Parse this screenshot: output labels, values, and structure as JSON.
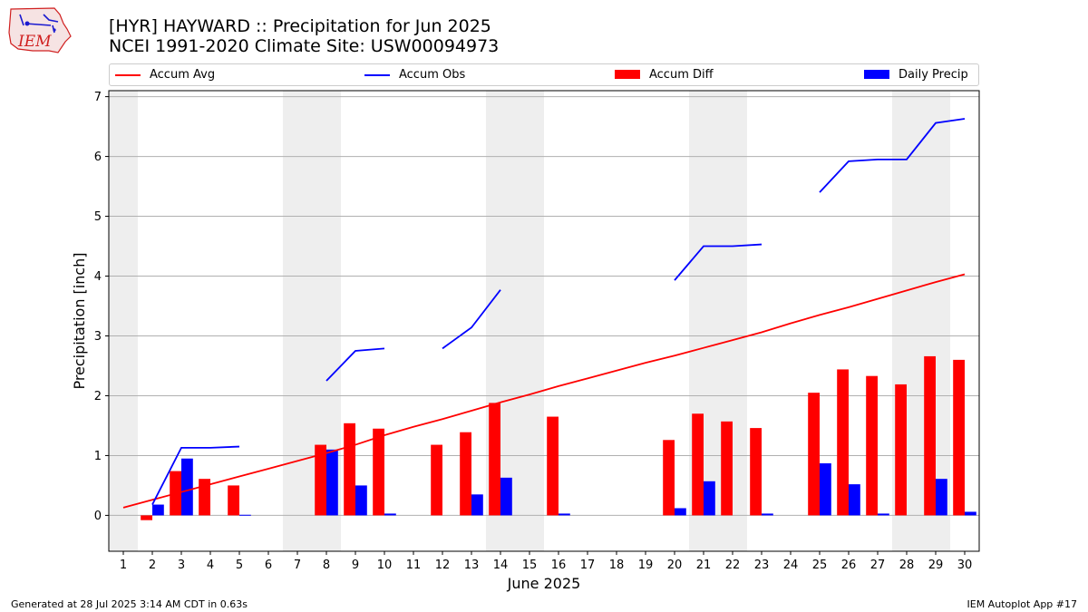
{
  "header": {
    "title_line1": "[HYR] HAYWARD :: Precipitation for Jun 2025",
    "title_line2": "NCEI 1991-2020 Climate Site: USW00094973",
    "logo_text": "IEM"
  },
  "legend": {
    "items": [
      {
        "label": "Accum Avg",
        "kind": "line",
        "color": "#ff0000"
      },
      {
        "label": "Accum Obs",
        "kind": "line",
        "color": "#0000ff"
      },
      {
        "label": "Accum Diff",
        "kind": "box",
        "color": "#ff0000"
      },
      {
        "label": "Daily Precip",
        "kind": "box",
        "color": "#0000ff"
      }
    ]
  },
  "footer": {
    "left": "Generated at 28 Jul 2025 3:14 AM CDT in 0.63s",
    "right": "IEM Autoplot App #17"
  },
  "chart_data": {
    "type": "bar",
    "xlabel": "June 2025",
    "ylabel": "Precipitation [inch]",
    "ylim": [
      -0.6,
      7.1
    ],
    "yticks": [
      0,
      1,
      2,
      3,
      4,
      5,
      6,
      7
    ],
    "xlim": [
      0.5,
      30.5
    ],
    "days": [
      1,
      2,
      3,
      4,
      5,
      6,
      7,
      8,
      9,
      10,
      11,
      12,
      13,
      14,
      15,
      16,
      17,
      18,
      19,
      20,
      21,
      22,
      23,
      24,
      25,
      26,
      27,
      28,
      29,
      30
    ],
    "weekend_days": [
      1,
      7,
      8,
      14,
      15,
      21,
      22,
      28,
      29
    ],
    "grid": "y",
    "legend_position": "top",
    "series": [
      {
        "name": "Accum Avg",
        "type": "line",
        "color": "#ff0000",
        "values": [
          0.13,
          0.26,
          0.39,
          0.52,
          0.65,
          0.78,
          0.91,
          1.04,
          1.18,
          1.34,
          1.48,
          1.61,
          1.75,
          1.89,
          2.02,
          2.16,
          2.29,
          2.42,
          2.55,
          2.67,
          2.8,
          2.93,
          3.06,
          3.21,
          3.35,
          3.48,
          3.62,
          3.76,
          3.9,
          4.03
        ]
      },
      {
        "name": "Accum Obs",
        "type": "line",
        "color": "#0000ff",
        "values": [
          null,
          0.18,
          1.13,
          1.13,
          1.15,
          null,
          null,
          2.25,
          2.75,
          2.79,
          null,
          2.79,
          3.14,
          3.77,
          null,
          null,
          null,
          null,
          null,
          3.93,
          4.5,
          4.5,
          4.53,
          null,
          5.4,
          5.92,
          5.95,
          5.95,
          6.56,
          6.63
        ]
      },
      {
        "name": "Accum Diff",
        "type": "bar",
        "color": "#ff0000",
        "values": [
          0,
          -0.08,
          0.74,
          0.61,
          0.5,
          0,
          0,
          1.18,
          1.54,
          1.45,
          0,
          1.18,
          1.39,
          1.88,
          0,
          1.65,
          0,
          0,
          0,
          1.26,
          1.7,
          1.57,
          1.46,
          0,
          2.05,
          2.44,
          2.33,
          2.19,
          2.66,
          2.6
        ]
      },
      {
        "name": "Daily Precip",
        "type": "bar",
        "color": "#0000ff",
        "values": [
          0,
          0.18,
          0.95,
          0,
          0.01,
          0,
          0,
          1.1,
          0.5,
          0.03,
          0,
          0,
          0.35,
          0.63,
          0,
          0.03,
          0,
          0,
          0,
          0.12,
          0.57,
          0,
          0.03,
          0,
          0.87,
          0.52,
          0.03,
          0,
          0.61,
          0.06
        ]
      }
    ]
  }
}
